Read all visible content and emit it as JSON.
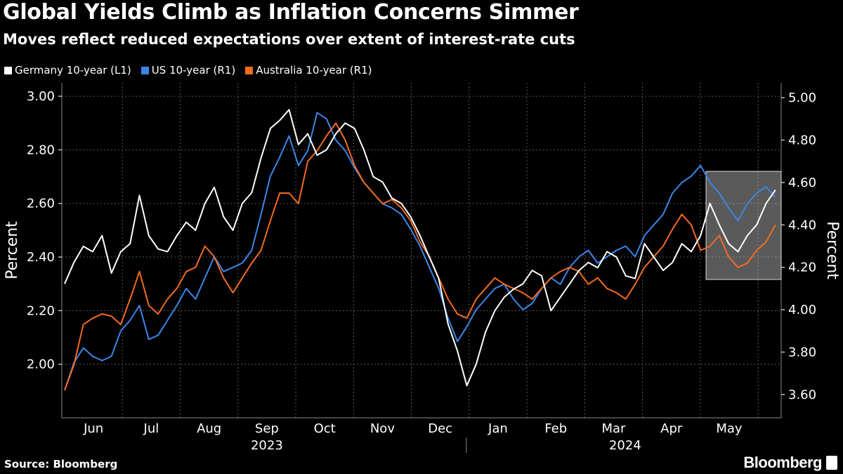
{
  "title": "Global Yields Climb as Inflation Concerns Simmer",
  "subtitle": "Moves reflect reduced expectations over extent of interest-rate cuts",
  "source": "Source: Bloomberg",
  "brand": "Bloomberg",
  "chart_data": {
    "type": "line",
    "grid": true,
    "legend_position": "top-left",
    "x_labels": [
      "Jun",
      "Jul",
      "Aug",
      "Sep",
      "Oct",
      "Nov",
      "Dec",
      "Jan",
      "Feb",
      "Mar",
      "Apr",
      "May"
    ],
    "year_labels": [
      "2023",
      "2024"
    ],
    "y_left": {
      "label": "Percent",
      "ylim": [
        1.8,
        3.05
      ],
      "ticks": [
        "2.00",
        "2.20",
        "2.40",
        "2.60",
        "2.80",
        "3.00"
      ]
    },
    "y_right": {
      "label": "Percent",
      "ylim": [
        3.49,
        5.07
      ],
      "ticks": [
        "3.60",
        "3.80",
        "4.00",
        "4.20",
        "4.40",
        "4.60",
        "4.80",
        "5.00"
      ]
    },
    "highlight": {
      "x_range": [
        11.5,
        12.4
      ]
    },
    "series": [
      {
        "name": "Germany 10-year (L1)",
        "axis": "left",
        "color": "#ffffff",
        "values": [
          2.3,
          2.38,
          2.44,
          2.42,
          2.48,
          2.34,
          2.42,
          2.45,
          2.63,
          2.48,
          2.43,
          2.42,
          2.48,
          2.53,
          2.5,
          2.6,
          2.66,
          2.55,
          2.5,
          2.6,
          2.64,
          2.77,
          2.88,
          2.91,
          2.95,
          2.82,
          2.86,
          2.78,
          2.8,
          2.86,
          2.9,
          2.88,
          2.8,
          2.7,
          2.68,
          2.62,
          2.6,
          2.55,
          2.48,
          2.4,
          2.32,
          2.15,
          2.05,
          1.92,
          2.0,
          2.12,
          2.2,
          2.25,
          2.28,
          2.3,
          2.35,
          2.33,
          2.2,
          2.25,
          2.3,
          2.35,
          2.38,
          2.36,
          2.42,
          2.4,
          2.33,
          2.32,
          2.45,
          2.4,
          2.35,
          2.38,
          2.45,
          2.42,
          2.48,
          2.6,
          2.52,
          2.45,
          2.42,
          2.48,
          2.52,
          2.6,
          2.65
        ]
      },
      {
        "name": "US 10-year (R1)",
        "axis": "right",
        "color": "#3a86e8",
        "values": [
          3.62,
          3.75,
          3.82,
          3.78,
          3.76,
          3.78,
          3.9,
          3.95,
          4.02,
          3.86,
          3.88,
          3.95,
          4.02,
          4.1,
          4.05,
          4.15,
          4.25,
          4.18,
          4.2,
          4.22,
          4.28,
          4.45,
          4.63,
          4.72,
          4.82,
          4.68,
          4.75,
          4.93,
          4.9,
          4.8,
          4.75,
          4.67,
          4.6,
          4.55,
          4.5,
          4.48,
          4.45,
          4.38,
          4.3,
          4.2,
          4.1,
          3.96,
          3.85,
          3.92,
          4.0,
          4.05,
          4.1,
          4.12,
          4.05,
          4.0,
          4.03,
          4.1,
          4.15,
          4.12,
          4.2,
          4.25,
          4.28,
          4.22,
          4.25,
          4.28,
          4.3,
          4.25,
          4.35,
          4.4,
          4.45,
          4.55,
          4.6,
          4.63,
          4.68,
          4.6,
          4.55,
          4.48,
          4.42,
          4.5,
          4.55,
          4.58,
          4.53
        ]
      },
      {
        "name": "Australia 10-year (R1)",
        "axis": "right",
        "color": "#f26b21",
        "values": [
          3.62,
          3.74,
          3.93,
          3.96,
          3.98,
          3.97,
          3.93,
          4.05,
          4.18,
          4.02,
          3.98,
          4.05,
          4.1,
          4.18,
          4.2,
          4.3,
          4.25,
          4.15,
          4.08,
          4.15,
          4.22,
          4.28,
          4.42,
          4.55,
          4.55,
          4.5,
          4.7,
          4.75,
          4.82,
          4.88,
          4.8,
          4.68,
          4.6,
          4.55,
          4.5,
          4.52,
          4.48,
          4.42,
          4.32,
          4.25,
          4.15,
          4.05,
          3.98,
          3.96,
          4.05,
          4.1,
          4.15,
          4.12,
          4.1,
          4.08,
          4.05,
          4.1,
          4.15,
          4.18,
          4.2,
          4.18,
          4.12,
          4.15,
          4.1,
          4.08,
          4.05,
          4.12,
          4.2,
          4.25,
          4.3,
          4.38,
          4.45,
          4.4,
          4.28,
          4.3,
          4.35,
          4.25,
          4.2,
          4.22,
          4.28,
          4.32,
          4.4
        ]
      }
    ]
  }
}
